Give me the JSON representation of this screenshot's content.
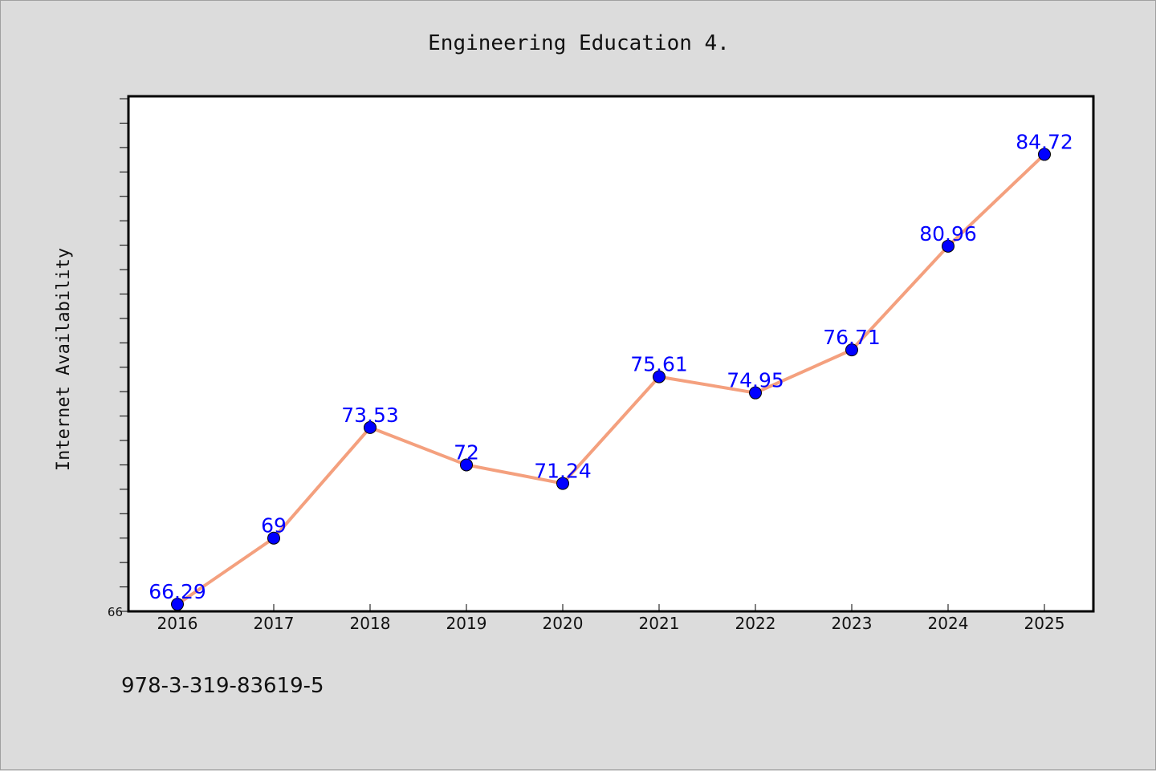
{
  "chart_data": {
    "type": "line",
    "title": "Engineering Education 4.",
    "xlabel": "",
    "ylabel": "Internet Availability",
    "categories": [
      "2016",
      "2017",
      "2018",
      "2019",
      "2020",
      "2021",
      "2022",
      "2023",
      "2024",
      "2025"
    ],
    "series": [
      {
        "values": [
          66.29,
          69,
          73.53,
          72,
          71.24,
          75.61,
          74.95,
          76.71,
          80.96,
          84.72
        ],
        "line_color": "#f4a07e",
        "marker_color": "#0000ff"
      }
    ],
    "data_labels": [
      "66.29",
      "69",
      "73.53",
      "72",
      "71.24",
      "75.61",
      "74.95",
      "76.71",
      "80.96",
      "84.72"
    ],
    "ylim": [
      66,
      87.1
    ],
    "yticks_labeled": [
      "66"
    ],
    "minor_tick_step": 1,
    "grid": false,
    "legend": "none",
    "label_color": "#0000ff"
  },
  "footer": {
    "isbn": "978-3-319-83619-5"
  }
}
